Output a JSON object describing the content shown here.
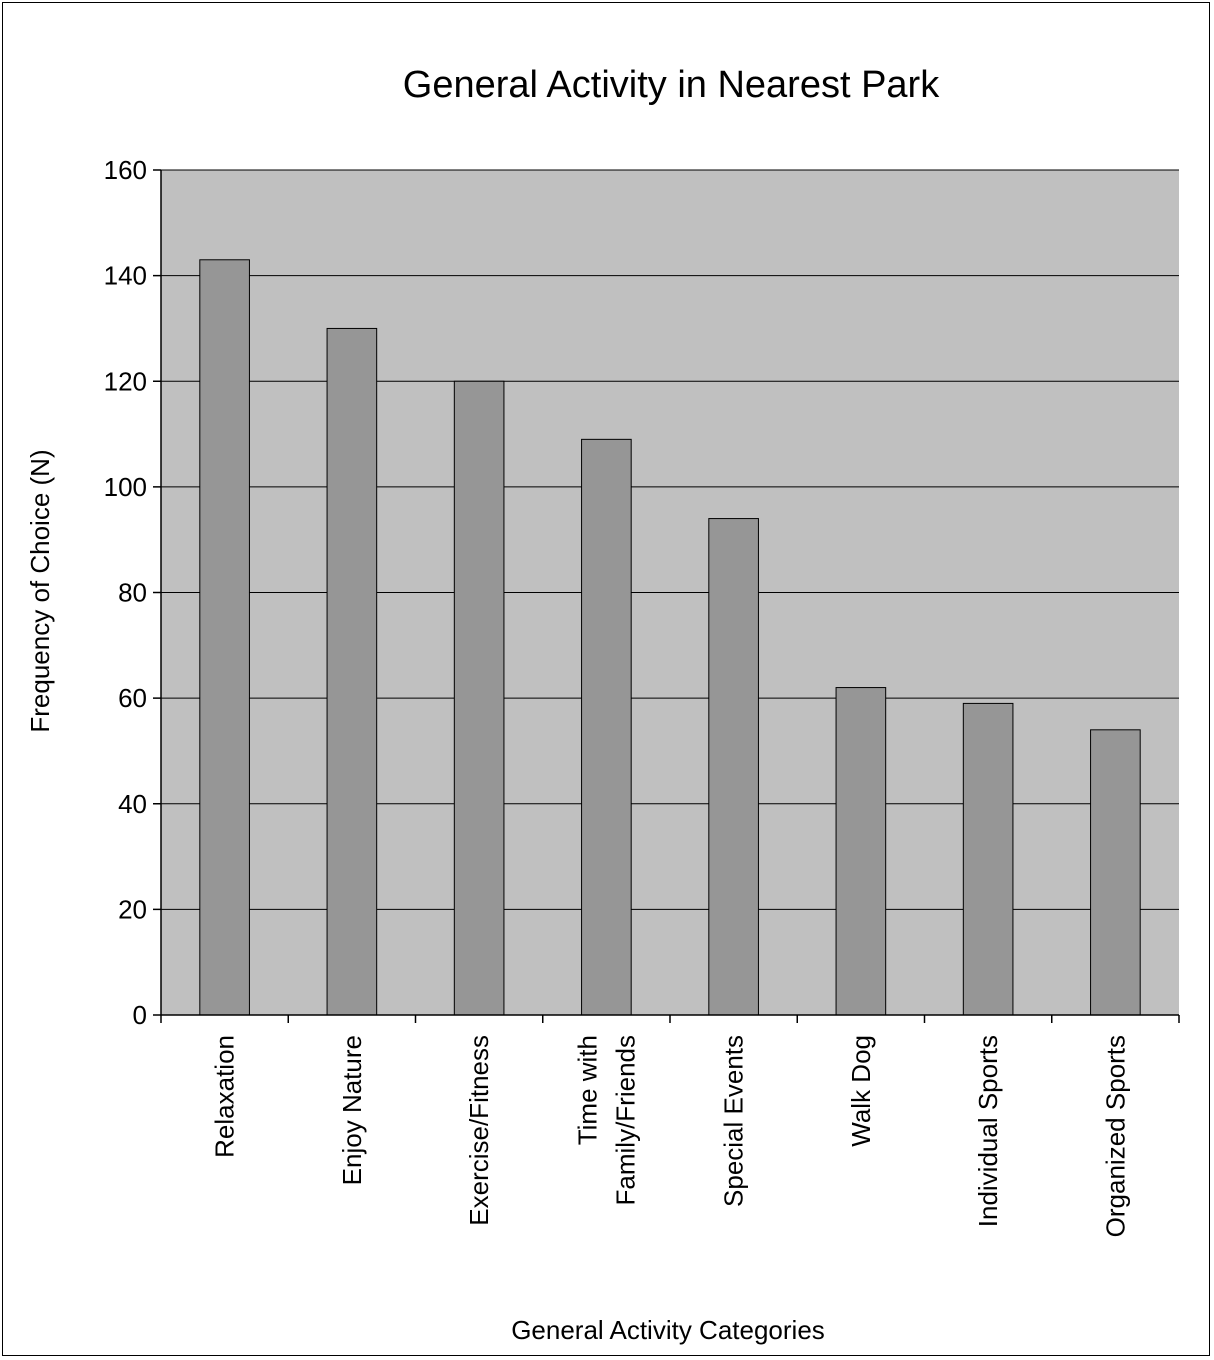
{
  "chart_data": {
    "type": "bar",
    "title": "General Activity in Nearest Park",
    "xlabel": "General Activity Categories",
    "ylabel": "Frequency of  Choice (N)",
    "ylim": [
      0,
      160
    ],
    "yticks": [
      "0",
      "20",
      "40",
      "60",
      "80",
      "100",
      "120",
      "140",
      "160"
    ],
    "grid": true,
    "categories": [
      [
        "Relaxation"
      ],
      [
        "Enjoy Nature"
      ],
      [
        "Exercise/Fitness"
      ],
      [
        "Time with",
        "Family/Friends"
      ],
      [
        "Special Events"
      ],
      [
        "Walk Dog"
      ],
      [
        "Individual Sports"
      ],
      [
        "Organized Sports"
      ]
    ],
    "values": [
      143,
      130,
      120,
      109,
      94,
      62,
      59,
      54
    ],
    "colors": {
      "plot_background": "#c0c0c0",
      "bar_fill": "#969696",
      "bar_stroke": "#000000",
      "gridline": "#000000"
    }
  }
}
